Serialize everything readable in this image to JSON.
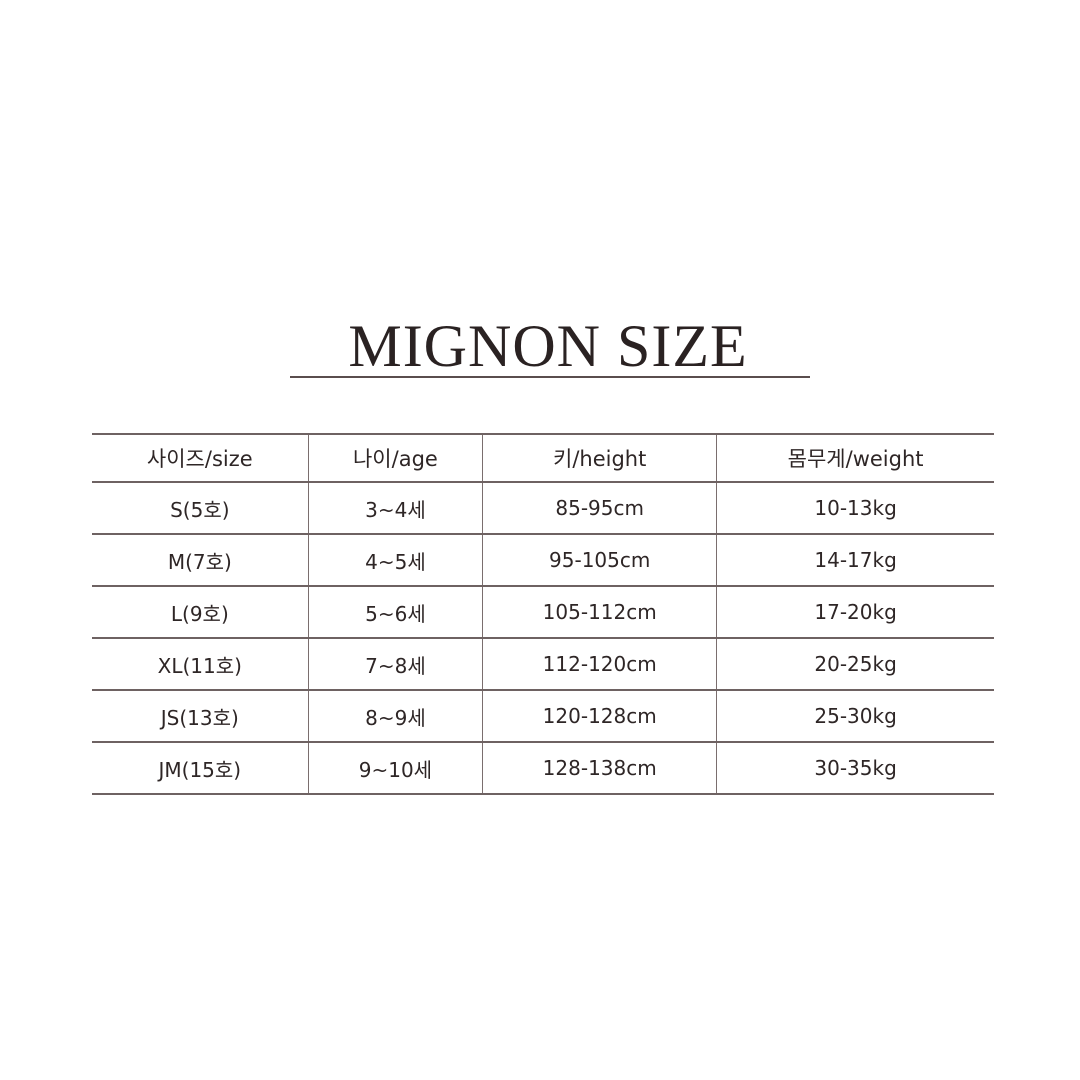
{
  "title": "MIGNON SIZE",
  "table": {
    "headers": [
      "사이즈/size",
      "나이/age",
      "키/height",
      "몸무게/weight"
    ],
    "rows": [
      [
        "S(5호)",
        "3~4세",
        "85-95cm",
        "10-13kg"
      ],
      [
        "M(7호)",
        "4~5세",
        "95-105cm",
        "14-17kg"
      ],
      [
        "L(9호)",
        "5~6세",
        "105-112cm",
        "17-20kg"
      ],
      [
        "XL(11호)",
        "7~8세",
        "112-120cm",
        "20-25kg"
      ],
      [
        "JS(13호)",
        "8~9세",
        "120-128cm",
        "25-30kg"
      ],
      [
        "JM(15호)",
        "9~10세",
        "128-138cm",
        "30-35kg"
      ]
    ]
  }
}
